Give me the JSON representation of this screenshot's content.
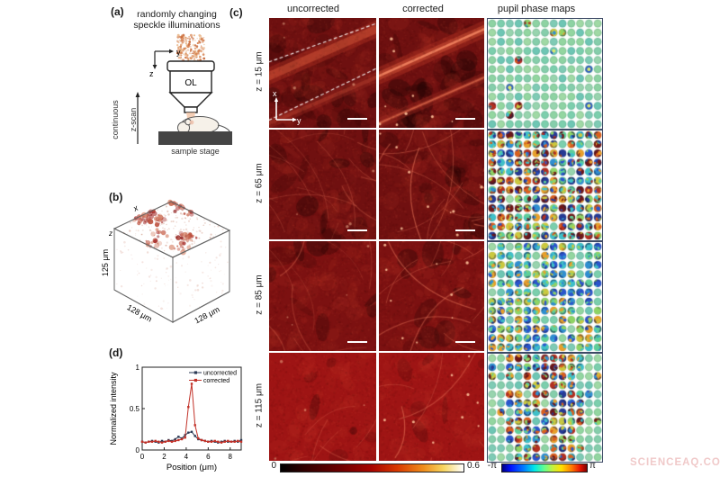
{
  "panel_a": {
    "label": "(a)",
    "caption_line1": "randomly changing",
    "caption_line2": "speckle illuminations",
    "axis_y": "y",
    "axis_z": "z",
    "objective_label": "OL",
    "scan_label_line1": "continuous",
    "scan_label_line2": "z-scan",
    "stage_label": "sample stage"
  },
  "panel_b": {
    "label": "(b)",
    "axis_x": "x",
    "axis_z": "z",
    "dim_left": "125 μm",
    "dim_bottom_left": "128 μm",
    "dim_bottom_right": "128 μm"
  },
  "panel_c": {
    "label": "(c)",
    "col_headers": [
      "uncorrected",
      "corrected",
      "pupil phase maps"
    ],
    "row_labels": [
      "z = 15 μm",
      "z = 65 μm",
      "z = 85 μm",
      "z = 115 μm"
    ],
    "inset_axis_x": "x",
    "inset_axis_y": "y",
    "colorbar_intensity": {
      "min": "0",
      "max": "0.6"
    },
    "colorbar_phase": {
      "min": "-π",
      "max": "π"
    }
  },
  "panel_d": {
    "label": "(d)"
  },
  "watermark": "SCIENCEAQ.COM",
  "chart_data": {
    "type": "line",
    "title": "",
    "xlabel": "Position (μm)",
    "ylabel": "Normalized intensity",
    "xlim": [
      0,
      9
    ],
    "ylim": [
      0,
      1
    ],
    "xticks": [
      0,
      2,
      4,
      6,
      8
    ],
    "yticks": [
      0,
      0.5,
      1
    ],
    "grid": false,
    "legend_position": "top-right",
    "x": [
      0,
      0.3,
      0.6,
      0.9,
      1.2,
      1.5,
      1.8,
      2.1,
      2.4,
      2.7,
      3.0,
      3.3,
      3.6,
      3.9,
      4.2,
      4.5,
      4.8,
      5.1,
      5.4,
      5.7,
      6.0,
      6.3,
      6.6,
      6.9,
      7.2,
      7.5,
      7.8,
      8.1,
      8.4,
      8.7,
      9.0
    ],
    "series": [
      {
        "name": "uncorrected",
        "color": "#2b3a55",
        "values": [
          0.1,
          0.09,
          0.1,
          0.11,
          0.1,
          0.09,
          0.11,
          0.1,
          0.12,
          0.11,
          0.13,
          0.16,
          0.14,
          0.18,
          0.21,
          0.22,
          0.17,
          0.13,
          0.12,
          0.11,
          0.1,
          0.11,
          0.1,
          0.09,
          0.1,
          0.11,
          0.1,
          0.1,
          0.11,
          0.1,
          0.12
        ]
      },
      {
        "name": "corrected",
        "color": "#c23128",
        "values": [
          0.1,
          0.09,
          0.1,
          0.1,
          0.11,
          0.1,
          0.09,
          0.1,
          0.11,
          0.1,
          0.11,
          0.12,
          0.13,
          0.15,
          0.52,
          0.8,
          0.3,
          0.14,
          0.12,
          0.11,
          0.1,
          0.1,
          0.11,
          0.1,
          0.09,
          0.1,
          0.11,
          0.1,
          0.1,
          0.11,
          0.1
        ]
      }
    ]
  }
}
